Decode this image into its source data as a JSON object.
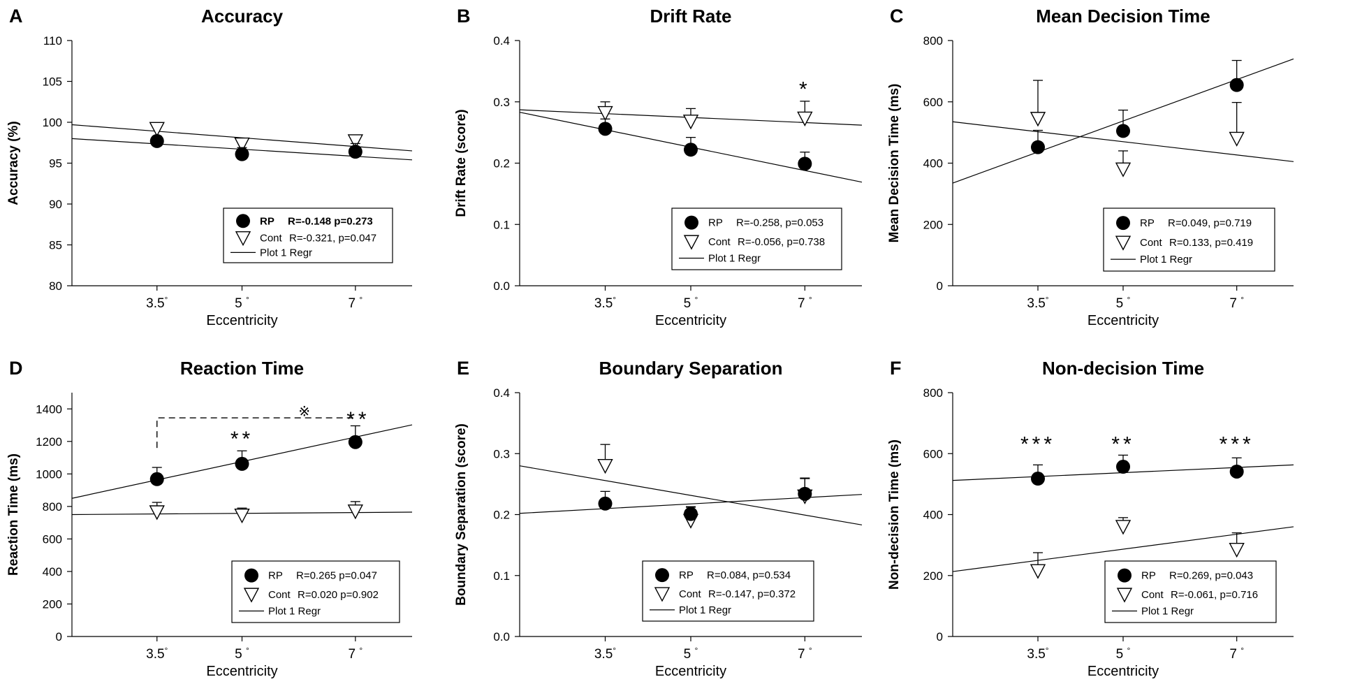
{
  "figure": {
    "x_tick_suffix": "°",
    "legend_regression_label": "Plot 1 Regr"
  },
  "chart_data": [
    {
      "panel": "A",
      "type": "scatter",
      "title": "Accuracy",
      "xlabel": "Eccentricity",
      "ylabel": "Accuracy (%)",
      "xlim": [
        2,
        8
      ],
      "ylim": [
        80,
        110
      ],
      "yticks": [
        80,
        85,
        90,
        95,
        100,
        105,
        110
      ],
      "x_ticks": [
        {
          "value": 3.5,
          "label": "3.5"
        },
        {
          "value": 5,
          "label": "5 "
        },
        {
          "value": 7,
          "label": "7 "
        }
      ],
      "series": [
        {
          "name": "RP",
          "marker": "filled-circle",
          "stats": "R=-0.148 p=0.273",
          "stats_bold": true,
          "values": [
            {
              "x": 3.5,
              "y": 97.7,
              "err": 0.6
            },
            {
              "x": 5,
              "y": 96.1,
              "err": 0.8
            },
            {
              "x": 7,
              "y": 96.4,
              "err": 1.0
            }
          ],
          "regression": {
            "x0": 2,
            "y0": 98.0,
            "x1": 8,
            "y1": 95.4
          }
        },
        {
          "name": "Cont",
          "marker": "open-triangle",
          "stats": "R=-0.321, p=0.047",
          "stats_bold": false,
          "values": [
            {
              "x": 3.5,
              "y": 99.2,
              "err": 0.4
            },
            {
              "x": 5,
              "y": 97.3,
              "err": 0.5
            },
            {
              "x": 7,
              "y": 97.7,
              "err": 0.7
            }
          ],
          "regression": {
            "x0": 2,
            "y0": 99.7,
            "x1": 8,
            "y1": 96.5
          }
        }
      ],
      "annotations": []
    },
    {
      "panel": "B",
      "type": "scatter",
      "title": "Drift Rate",
      "xlabel": "Eccentricity",
      "ylabel": "Drift Rate (score)",
      "xlim": [
        2,
        8
      ],
      "ylim": [
        0,
        0.4
      ],
      "yticks": [
        0.0,
        0.1,
        0.2,
        0.3,
        0.4
      ],
      "x_ticks": [
        {
          "value": 3.5,
          "label": "3.5"
        },
        {
          "value": 5,
          "label": "5 "
        },
        {
          "value": 7,
          "label": "7 "
        }
      ],
      "series": [
        {
          "name": "RP",
          "marker": "filled-circle",
          "stats": "R=-0.258, p=0.053",
          "stats_bold": false,
          "values": [
            {
              "x": 3.5,
              "y": 0.256,
              "err": 0.016
            },
            {
              "x": 5,
              "y": 0.222,
              "err": 0.02
            },
            {
              "x": 7,
              "y": 0.199,
              "err": 0.019
            }
          ],
          "regression": {
            "x0": 2,
            "y0": 0.283,
            "x1": 8,
            "y1": 0.169
          }
        },
        {
          "name": "Cont",
          "marker": "open-triangle",
          "stats": "R=-0.056, p=0.738",
          "stats_bold": false,
          "values": [
            {
              "x": 3.5,
              "y": 0.282,
              "err": 0.018
            },
            {
              "x": 5,
              "y": 0.268,
              "err": 0.021
            },
            {
              "x": 7,
              "y": 0.273,
              "err": 0.028
            }
          ],
          "regression": {
            "x0": 2,
            "y0": 0.287,
            "x1": 8,
            "y1": 0.262
          }
        }
      ],
      "annotations": [
        {
          "text": "*",
          "x": 7,
          "y": 0.33
        }
      ]
    },
    {
      "panel": "C",
      "type": "scatter",
      "title": "Mean Decision Time",
      "xlabel": "Eccentricity",
      "ylabel": "Mean Decision Time (ms)",
      "xlim": [
        2,
        8
      ],
      "ylim": [
        0,
        800
      ],
      "yticks": [
        0,
        200,
        400,
        600,
        800
      ],
      "x_ticks": [
        {
          "value": 3.5,
          "label": "3.5"
        },
        {
          "value": 5,
          "label": "5 "
        },
        {
          "value": 7,
          "label": "7 "
        }
      ],
      "series": [
        {
          "name": "RP",
          "marker": "filled-circle",
          "stats": "R=0.049, p=0.719",
          "stats_bold": false,
          "values": [
            {
              "x": 3.5,
              "y": 452,
              "err": 55
            },
            {
              "x": 5,
              "y": 505,
              "err": 68
            },
            {
              "x": 7,
              "y": 655,
              "err": 80
            }
          ],
          "regression": {
            "x0": 2,
            "y0": 335,
            "x1": 8,
            "y1": 740
          }
        },
        {
          "name": "Cont",
          "marker": "open-triangle",
          "stats": "R=0.133, p=0.419",
          "stats_bold": false,
          "values": [
            {
              "x": 3.5,
              "y": 545,
              "err": 125
            },
            {
              "x": 5,
              "y": 380,
              "err": 60
            },
            {
              "x": 7,
              "y": 480,
              "err": 118
            }
          ],
          "regression": {
            "x0": 2,
            "y0": 535,
            "x1": 8,
            "y1": 405
          }
        }
      ],
      "annotations": []
    },
    {
      "panel": "D",
      "type": "scatter",
      "title": "Reaction Time",
      "xlabel": "Eccentricity",
      "ylabel": "Reaction Time (ms)",
      "xlim": [
        2,
        8
      ],
      "ylim": [
        0,
        1500
      ],
      "yticks": [
        0,
        200,
        400,
        600,
        800,
        1000,
        1200,
        1400
      ],
      "x_ticks": [
        {
          "value": 3.5,
          "label": "3.5"
        },
        {
          "value": 5,
          "label": "5 "
        },
        {
          "value": 7,
          "label": "7 "
        }
      ],
      "series": [
        {
          "name": "RP",
          "marker": "filled-circle",
          "stats": "R=0.265 p=0.047",
          "stats_bold": false,
          "values": [
            {
              "x": 3.5,
              "y": 968,
              "err": 72
            },
            {
              "x": 5,
              "y": 1062,
              "err": 80
            },
            {
              "x": 7,
              "y": 1196,
              "err": 100
            }
          ],
          "regression": {
            "x0": 2,
            "y0": 850,
            "x1": 8,
            "y1": 1302
          }
        },
        {
          "name": "Cont",
          "marker": "open-triangle",
          "stats": "R=0.020 p=0.902",
          "stats_bold": false,
          "values": [
            {
              "x": 3.5,
              "y": 765,
              "err": 60
            },
            {
              "x": 5,
              "y": 745,
              "err": 45
            },
            {
              "x": 7,
              "y": 770,
              "err": 60
            }
          ],
          "regression": {
            "x0": 2,
            "y0": 750,
            "x1": 8,
            "y1": 765
          }
        }
      ],
      "annotations": [
        {
          "text": "**",
          "x": 5,
          "y": 1250
        },
        {
          "text": "※",
          "x": 6.1,
          "y": 1390
        },
        {
          "text": "**",
          "x": 7.05,
          "y": 1370
        }
      ],
      "bracket": {
        "x_start": 3.5,
        "x_end": 7,
        "y": 1345,
        "y_start_low": 1160
      }
    },
    {
      "panel": "E",
      "type": "scatter",
      "title": "Boundary Separation",
      "xlabel": "Eccentricity",
      "ylabel": "Boundary Separation (score)",
      "xlim": [
        2,
        8
      ],
      "ylim": [
        0,
        0.4
      ],
      "yticks": [
        0.0,
        0.1,
        0.2,
        0.3,
        0.4
      ],
      "x_ticks": [
        {
          "value": 3.5,
          "label": "3.5"
        },
        {
          "value": 5,
          "label": "5 "
        },
        {
          "value": 7,
          "label": "7 "
        }
      ],
      "series": [
        {
          "name": "RP",
          "marker": "filled-circle",
          "stats": "R=0.084, p=0.534",
          "stats_bold": false,
          "values": [
            {
              "x": 3.5,
              "y": 0.218,
              "err": 0.02
            },
            {
              "x": 5,
              "y": 0.201,
              "err": 0.012
            },
            {
              "x": 7,
              "y": 0.234,
              "err": 0.025
            }
          ],
          "regression": {
            "x0": 2,
            "y0": 0.202,
            "x1": 8,
            "y1": 0.233
          }
        },
        {
          "name": "Cont",
          "marker": "open-triangle",
          "stats": "R=-0.147, p=0.372",
          "stats_bold": false,
          "values": [
            {
              "x": 3.5,
              "y": 0.28,
              "err": 0.035
            },
            {
              "x": 5,
              "y": 0.19,
              "err": 0.022
            },
            {
              "x": 7,
              "y": 0.23,
              "err": 0.03
            }
          ],
          "regression": {
            "x0": 2,
            "y0": 0.28,
            "x1": 8,
            "y1": 0.183
          }
        }
      ],
      "annotations": []
    },
    {
      "panel": "F",
      "type": "scatter",
      "title": "Non-decision Time",
      "xlabel": "Eccentricity",
      "ylabel": "Non-decision Time (ms)",
      "xlim": [
        2,
        8
      ],
      "ylim": [
        0,
        800
      ],
      "yticks": [
        0,
        200,
        400,
        600,
        800
      ],
      "x_ticks": [
        {
          "value": 3.5,
          "label": "3.5"
        },
        {
          "value": 5,
          "label": "5 "
        },
        {
          "value": 7,
          "label": "7 "
        }
      ],
      "series": [
        {
          "name": "RP",
          "marker": "filled-circle",
          "stats": "R=0.269, p=0.043",
          "stats_bold": false,
          "values": [
            {
              "x": 3.5,
              "y": 518,
              "err": 45
            },
            {
              "x": 5,
              "y": 557,
              "err": 38
            },
            {
              "x": 7,
              "y": 541,
              "err": 45
            }
          ],
          "regression": {
            "x0": 2,
            "y0": 512,
            "x1": 8,
            "y1": 563
          }
        },
        {
          "name": "Cont",
          "marker": "open-triangle",
          "stats": "R=-0.061, p=0.716",
          "stats_bold": false,
          "values": [
            {
              "x": 3.5,
              "y": 215,
              "err": 60
            },
            {
              "x": 5,
              "y": 360,
              "err": 30
            },
            {
              "x": 7,
              "y": 285,
              "err": 55
            }
          ],
          "regression": {
            "x0": 2,
            "y0": 213,
            "x1": 8,
            "y1": 360
          }
        }
      ],
      "annotations": [
        {
          "text": "***",
          "x": 3.5,
          "y": 650
        },
        {
          "text": "**",
          "x": 5,
          "y": 650
        },
        {
          "text": "***",
          "x": 7,
          "y": 650
        }
      ]
    }
  ]
}
